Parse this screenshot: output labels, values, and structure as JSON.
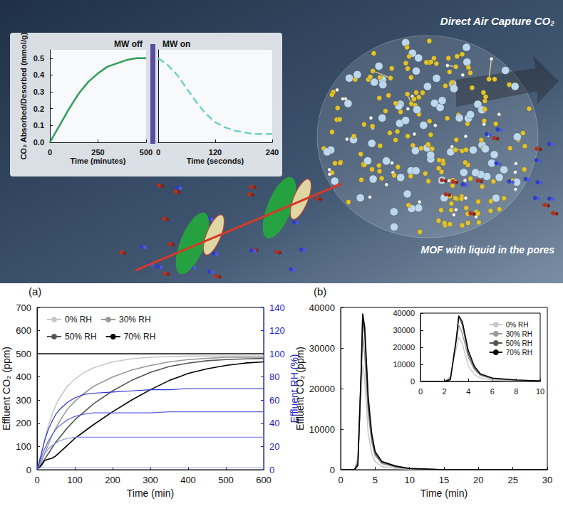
{
  "illustration": {
    "labels": [
      "Direct Air Capture CO₂",
      "MOF with liquid in the pores"
    ]
  },
  "chart_data": [
    {
      "type": "line",
      "xlabel": "Time (minutes)",
      "ylabel": "CO₂ Absorbed/Desorbed (mmol/g)",
      "x": [
        0,
        25,
        50,
        75,
        100,
        150,
        200,
        250,
        300,
        350,
        400,
        450,
        500
      ],
      "xlim": [
        0,
        500
      ],
      "xticks": [
        0,
        250,
        500
      ],
      "ylim": [
        0,
        0.55
      ],
      "yticks": [
        {
          "value": 0,
          "label": "0.0"
        },
        0.1,
        0.2,
        0.3,
        0.4,
        0.5
      ],
      "annotations": [
        "MW off"
      ],
      "series": [
        {
          "color": "#2e9e5a",
          "values": [
            0,
            0.05,
            0.1,
            0.15,
            0.2,
            0.29,
            0.36,
            0.41,
            0.45,
            0.47,
            0.49,
            0.5,
            0.5
          ]
        }
      ]
    },
    {
      "type": "line",
      "xlabel": "Time (seconds)",
      "x": [
        0,
        20,
        40,
        60,
        80,
        100,
        120,
        140,
        160,
        180,
        200,
        220,
        240
      ],
      "xlim": [
        0,
        240
      ],
      "xticks": [
        0,
        120,
        240
      ],
      "ylim": [
        0,
        0.55
      ],
      "tick_labels": "x",
      "annotations": [
        "MW on"
      ],
      "series": [
        {
          "color": "#6fd0c6",
          "line_style": "dashed",
          "values": [
            0.5,
            0.46,
            0.4,
            0.32,
            0.24,
            0.17,
            0.12,
            0.09,
            0.07,
            0.06,
            0.05,
            0.05,
            0.05
          ]
        }
      ]
    },
    {
      "type": "line",
      "title": "(a)",
      "xlabel": "Time (min)",
      "ylabel": "Effluent CO₂ (ppm)",
      "y2label": "Effluent RH (%)",
      "x": [
        0,
        10,
        20,
        30,
        40,
        50,
        60,
        80,
        100,
        125,
        150,
        200,
        250,
        300,
        350,
        400,
        450,
        500,
        550,
        600
      ],
      "xlim": [
        0,
        600
      ],
      "xticks": [
        0,
        100,
        200,
        300,
        400,
        500,
        600
      ],
      "ylim": [
        0,
        700
      ],
      "yticks": [
        0,
        100,
        200,
        300,
        400,
        500,
        600,
        700
      ],
      "y2lim": [
        0,
        140
      ],
      "y2ticks": [
        0,
        20,
        40,
        60,
        80,
        100,
        120,
        140
      ],
      "legend": "upper left",
      "series": [
        {
          "name": "0% RH",
          "color": "#c8c8c8",
          "values": [
            0,
            60,
            130,
            190,
            240,
            280,
            310,
            360,
            390,
            420,
            440,
            465,
            478,
            485,
            488,
            490,
            490,
            490,
            490,
            490
          ]
        },
        {
          "name": "30% RH",
          "color": "#999999",
          "values": [
            0,
            30,
            70,
            110,
            150,
            180,
            210,
            260,
            295,
            330,
            360,
            400,
            430,
            450,
            465,
            475,
            480,
            485,
            485,
            485
          ]
        },
        {
          "name": "50% RH",
          "color": "#555555",
          "values": [
            0,
            20,
            45,
            70,
            95,
            120,
            140,
            180,
            215,
            250,
            285,
            340,
            385,
            420,
            445,
            460,
            470,
            475,
            478,
            480
          ]
        },
        {
          "name": "70% RH",
          "color": "#000000",
          "values": [
            0,
            15,
            40,
            45,
            50,
            60,
            75,
            105,
            135,
            165,
            195,
            250,
            300,
            345,
            385,
            415,
            435,
            450,
            460,
            465
          ]
        },
        {
          "color": "#222222",
          "values": [
            500,
            500,
            500,
            500,
            500,
            500,
            500,
            500,
            500,
            500,
            500,
            500,
            500,
            500,
            500,
            500,
            500,
            500,
            500,
            500
          ]
        },
        {
          "color": "#b4b8ff",
          "axis": "y2",
          "values": [
            0,
            2,
            2,
            2,
            2,
            2,
            2,
            2,
            2,
            2,
            2,
            2,
            2,
            2,
            2,
            2,
            2,
            2,
            2,
            2
          ]
        },
        {
          "color": "#8a8cf5",
          "axis": "y2",
          "values": [
            0,
            8,
            14,
            18,
            21,
            23,
            25,
            27,
            28,
            28,
            28,
            28,
            28,
            28,
            28,
            28,
            28,
            28,
            28,
            28
          ]
        },
        {
          "color": "#5a60e8",
          "axis": "y2",
          "values": [
            0,
            10,
            18,
            25,
            30,
            35,
            38,
            43,
            46,
            48,
            49,
            49,
            49,
            49,
            50,
            50,
            50,
            50,
            50,
            50
          ]
        },
        {
          "color": "#2a32d8",
          "axis": "y2",
          "values": [
            0,
            12,
            25,
            35,
            42,
            48,
            52,
            58,
            62,
            65,
            66,
            67,
            68,
            69,
            69,
            70,
            70,
            70,
            70,
            70
          ]
        }
      ]
    },
    {
      "type": "line",
      "title": "(b)",
      "xlabel": "Time (min)",
      "ylabel": "Effluent CO₂ (ppm)",
      "x": [
        0,
        1,
        2,
        2.5,
        3,
        3.2,
        3.5,
        4,
        4.5,
        5,
        6,
        8,
        10,
        15,
        20,
        25,
        30
      ],
      "xlim": [
        0,
        30
      ],
      "xticks": [
        0,
        5,
        10,
        15,
        20,
        25,
        30
      ],
      "ylim": [
        0,
        40000
      ],
      "yticks": [
        0,
        10000,
        20000,
        30000,
        40000
      ],
      "series": [
        {
          "color": "#c8c8c8",
          "values": [
            0,
            0,
            0,
            3000,
            20000,
            26000,
            22000,
            9000,
            4000,
            2000,
            800,
            300,
            100,
            0,
            0,
            0,
            0
          ]
        },
        {
          "color": "#999999",
          "values": [
            0,
            0,
            0,
            2000,
            24000,
            33000,
            28000,
            14000,
            7000,
            3500,
            1500,
            600,
            200,
            0,
            0,
            0,
            0
          ]
        },
        {
          "color": "#555555",
          "values": [
            0,
            0,
            0,
            1500,
            26000,
            38000,
            33000,
            16000,
            8000,
            4000,
            1800,
            800,
            300,
            0,
            0,
            0,
            0
          ]
        },
        {
          "color": "#000000",
          "values": [
            0,
            0,
            0,
            1000,
            25000,
            38500,
            35000,
            18000,
            9000,
            4500,
            2000,
            900,
            300,
            0,
            0,
            0,
            0
          ]
        }
      ]
    },
    {
      "type": "line",
      "x": [
        0,
        1,
        2,
        2.5,
        3,
        3.2,
        3.5,
        4,
        4.5,
        5,
        6,
        8,
        10
      ],
      "xlim": [
        0,
        10
      ],
      "xticks": [
        0,
        2,
        4,
        6,
        8,
        10
      ],
      "ylim": [
        0,
        40000
      ],
      "yticks": [
        0,
        10000,
        20000,
        30000,
        40000
      ],
      "legend": "upper right",
      "series": [
        {
          "name": "0% RH",
          "color": "#c8c8c8",
          "values": [
            0,
            0,
            0,
            3000,
            20000,
            26000,
            22000,
            9000,
            4000,
            2000,
            800,
            300,
            100
          ]
        },
        {
          "name": "30% RH",
          "color": "#999999",
          "values": [
            0,
            0,
            0,
            2000,
            24000,
            33000,
            28000,
            14000,
            7000,
            3500,
            1500,
            600,
            200
          ]
        },
        {
          "name": "50% RH",
          "color": "#555555",
          "values": [
            0,
            0,
            0,
            1500,
            26000,
            38000,
            33000,
            16000,
            8000,
            4000,
            1800,
            800,
            300
          ]
        },
        {
          "name": "70% RH",
          "color": "#000000",
          "values": [
            0,
            0,
            0,
            1000,
            25000,
            38500,
            35000,
            18000,
            9000,
            4500,
            2000,
            900,
            300
          ]
        }
      ]
    }
  ]
}
